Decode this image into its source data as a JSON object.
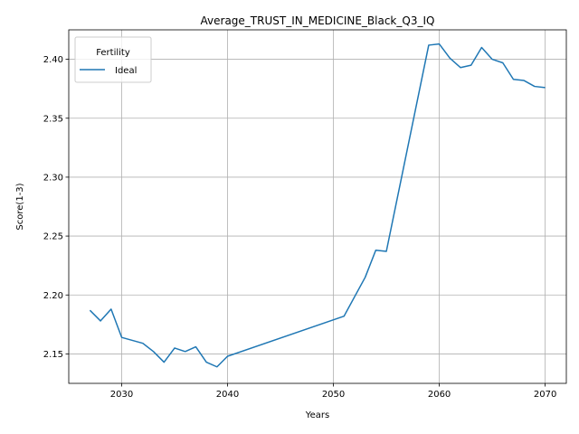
{
  "chart_data": {
    "type": "line",
    "title": "Average_TRUST_IN_MEDICINE_Black_Q3_IQ",
    "xlabel": "Years",
    "ylabel": "Score(1-3)",
    "xlim": [
      2025,
      2072
    ],
    "ylim": [
      2.125,
      2.425
    ],
    "x_ticks": [
      2030,
      2040,
      2050,
      2060,
      2070
    ],
    "y_ticks": [
      2.15,
      2.2,
      2.25,
      2.3,
      2.35,
      2.4
    ],
    "x_tick_labels": [
      "2030",
      "2040",
      "2050",
      "2060",
      "2070"
    ],
    "y_tick_labels": [
      "2.15",
      "2.20",
      "2.25",
      "2.30",
      "2.35",
      "2.40"
    ],
    "grid": true,
    "legend": {
      "title": "Fertility",
      "placement": "top-left"
    },
    "colors": {
      "series": "#1f77b4",
      "grid": "#b0b0b0"
    },
    "series": [
      {
        "name": "Ideal",
        "x": [
          2027,
          2028,
          2029,
          2030,
          2032,
          2033,
          2034,
          2035,
          2036,
          2037,
          2038,
          2039,
          2040,
          2051,
          2053,
          2054,
          2055,
          2059,
          2060,
          2061,
          2062,
          2063,
          2064,
          2065,
          2066,
          2067,
          2068,
          2069,
          2070
        ],
        "y": [
          2.187,
          2.178,
          2.188,
          2.164,
          2.159,
          2.152,
          2.143,
          2.155,
          2.152,
          2.156,
          2.143,
          2.139,
          2.148,
          2.182,
          2.215,
          2.238,
          2.237,
          2.412,
          2.413,
          2.401,
          2.393,
          2.395,
          2.41,
          2.4,
          2.397,
          2.383,
          2.382,
          2.377,
          2.376
        ]
      }
    ]
  }
}
